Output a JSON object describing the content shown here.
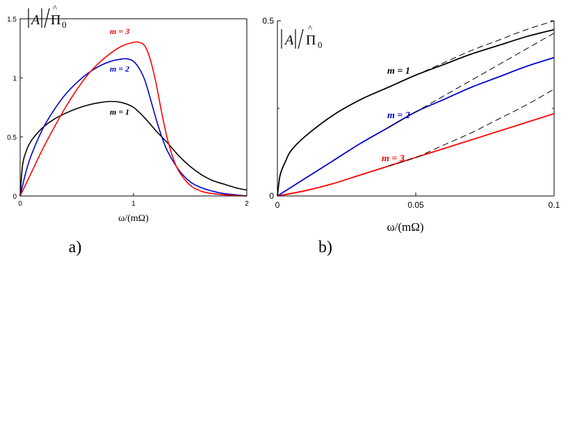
{
  "chart_data": [
    {
      "type": "line",
      "panel_label": "a)",
      "ylabel": "|A|/Π̂0",
      "xlabel": "ω/(mΩ)",
      "xlim": [
        0,
        2
      ],
      "ylim": [
        0,
        1.5
      ],
      "xticks": [
        0,
        1,
        2
      ],
      "xtick_labels": [
        "0",
        "1",
        "2"
      ],
      "yticks": [
        0,
        0.5,
        1,
        1.5
      ],
      "ytick_labels": [
        "0",
        "0.5",
        "1",
        "1.5"
      ],
      "series": [
        {
          "name": "m = 1",
          "color": "#000000",
          "x": [
            0,
            0.02,
            0.05,
            0.1,
            0.2,
            0.3,
            0.4,
            0.5,
            0.6,
            0.7,
            0.8,
            0.9,
            1.0,
            1.1,
            1.2,
            1.3,
            1.4,
            1.5,
            1.6,
            1.7,
            1.8,
            1.9,
            2.0
          ],
          "y": [
            0,
            0.25,
            0.37,
            0.47,
            0.58,
            0.65,
            0.7,
            0.74,
            0.77,
            0.79,
            0.8,
            0.79,
            0.75,
            0.66,
            0.55,
            0.45,
            0.34,
            0.25,
            0.18,
            0.13,
            0.1,
            0.07,
            0.05
          ]
        },
        {
          "name": "m = 2",
          "color": "#0000cc",
          "x": [
            0,
            0.05,
            0.1,
            0.2,
            0.3,
            0.4,
            0.5,
            0.6,
            0.7,
            0.8,
            0.9,
            0.95,
            1.0,
            1.05,
            1.1,
            1.15,
            1.2,
            1.25,
            1.3,
            1.4,
            1.5,
            1.6,
            1.7,
            1.8,
            1.9,
            2.0
          ],
          "y": [
            0,
            0.2,
            0.35,
            0.57,
            0.73,
            0.86,
            0.96,
            1.04,
            1.1,
            1.14,
            1.16,
            1.16,
            1.14,
            1.08,
            0.98,
            0.82,
            0.65,
            0.5,
            0.38,
            0.22,
            0.12,
            0.07,
            0.04,
            0.02,
            0.01,
            0
          ]
        },
        {
          "name": "m = 3",
          "color": "#ff0000",
          "x": [
            0,
            0.05,
            0.1,
            0.2,
            0.3,
            0.4,
            0.5,
            0.6,
            0.7,
            0.8,
            0.9,
            1.0,
            1.05,
            1.1,
            1.15,
            1.2,
            1.25,
            1.3,
            1.35,
            1.4,
            1.5,
            1.6,
            1.7,
            1.8,
            2.0
          ],
          "y": [
            0,
            0.1,
            0.2,
            0.4,
            0.58,
            0.75,
            0.9,
            1.03,
            1.13,
            1.21,
            1.27,
            1.3,
            1.3,
            1.27,
            1.15,
            0.95,
            0.7,
            0.48,
            0.32,
            0.21,
            0.09,
            0.04,
            0.02,
            0.01,
            0
          ]
        }
      ],
      "annotations": [
        {
          "text": "m = 3",
          "color": "#ff0000"
        },
        {
          "text": "m = 2",
          "color": "#0000cc"
        },
        {
          "text": "m = 1",
          "color": "#000000"
        }
      ]
    },
    {
      "type": "line",
      "panel_label": "b)",
      "ylabel": "|A|/Π̂0",
      "xlabel": "ω/(mΩ)",
      "xlim": [
        0,
        0.1
      ],
      "ylim": [
        0,
        0.5
      ],
      "xticks": [
        0,
        0.05,
        0.1
      ],
      "xtick_labels": [
        "0",
        "0.05",
        "0.1"
      ],
      "yticks": [
        0,
        0.5
      ],
      "ytick_labels": [
        "0",
        "0.5"
      ],
      "minor_yticks": [
        0.25
      ],
      "series": [
        {
          "name": "m = 1",
          "color": "#000000",
          "style": "solid",
          "x": [
            0,
            0.001,
            0.003,
            0.005,
            0.01,
            0.02,
            0.03,
            0.04,
            0.05,
            0.06,
            0.07,
            0.08,
            0.09,
            0.1
          ],
          "y": [
            0,
            0.06,
            0.1,
            0.13,
            0.17,
            0.23,
            0.275,
            0.31,
            0.345,
            0.375,
            0.405,
            0.43,
            0.455,
            0.475
          ]
        },
        {
          "name": "m = 2",
          "color": "#0000cc",
          "style": "solid",
          "x": [
            0,
            0.01,
            0.02,
            0.03,
            0.04,
            0.05,
            0.06,
            0.07,
            0.08,
            0.09,
            0.1
          ],
          "y": [
            0,
            0.05,
            0.1,
            0.15,
            0.195,
            0.24,
            0.275,
            0.31,
            0.34,
            0.37,
            0.395
          ]
        },
        {
          "name": "m = 3",
          "color": "#ff0000",
          "style": "solid",
          "x": [
            0,
            0.01,
            0.02,
            0.03,
            0.04,
            0.05,
            0.06,
            0.07,
            0.08,
            0.09,
            0.1
          ],
          "y": [
            0,
            0.015,
            0.035,
            0.06,
            0.085,
            0.11,
            0.135,
            0.16,
            0.185,
            0.21,
            0.235
          ]
        },
        {
          "name": "m = 1 asymptote",
          "color": "#000000",
          "style": "dashed",
          "x": [
            0.04,
            0.05,
            0.06,
            0.07,
            0.08,
            0.09,
            0.1
          ],
          "y": [
            0.31,
            0.345,
            0.38,
            0.415,
            0.445,
            0.475,
            0.5
          ]
        },
        {
          "name": "m = 2 asymptote",
          "color": "#000000",
          "style": "dashed",
          "x": [
            0.04,
            0.05,
            0.06,
            0.07,
            0.08,
            0.09,
            0.1
          ],
          "y": [
            0.195,
            0.24,
            0.285,
            0.33,
            0.375,
            0.42,
            0.465
          ]
        },
        {
          "name": "m = 3 asymptote",
          "color": "#000000",
          "style": "dashed",
          "x": [
            0.04,
            0.05,
            0.06,
            0.07,
            0.08,
            0.09,
            0.1
          ],
          "y": [
            0.085,
            0.11,
            0.145,
            0.18,
            0.22,
            0.26,
            0.305
          ]
        }
      ],
      "annotations": [
        {
          "text": "m = 1",
          "color": "#000000"
        },
        {
          "text": "m = 2",
          "color": "#0000cc"
        },
        {
          "text": "m = 3",
          "color": "#ff0000"
        }
      ]
    }
  ]
}
